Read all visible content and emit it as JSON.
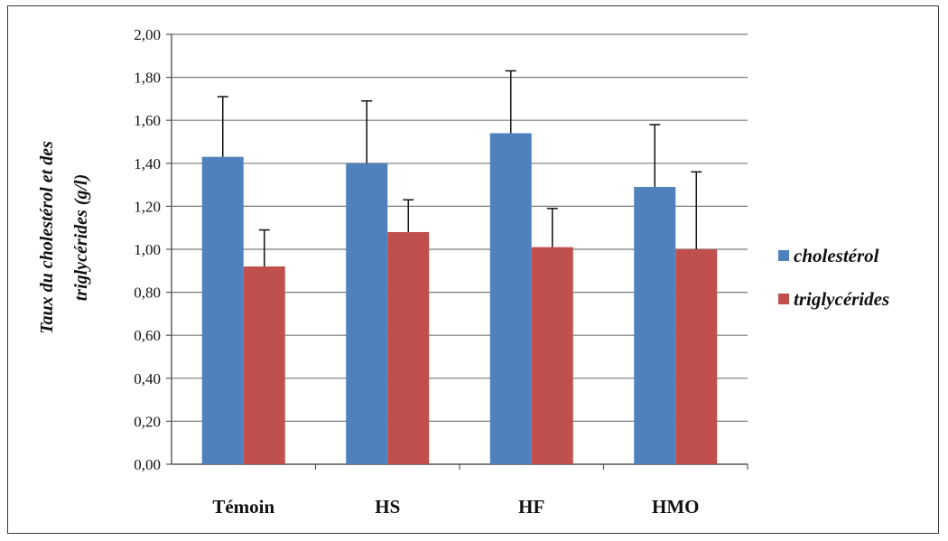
{
  "chart_data": {
    "type": "bar",
    "title": "",
    "categories": [
      "Témoin",
      "HS",
      "HF",
      "HMO"
    ],
    "series": [
      {
        "name": "cholestérol",
        "color": "#4f81bd",
        "values": [
          1.43,
          1.4,
          1.54,
          1.29
        ],
        "errors": [
          0.28,
          0.29,
          0.29,
          0.29
        ]
      },
      {
        "name": "triglycérides",
        "color": "#c0504d",
        "values": [
          0.92,
          1.08,
          1.01,
          1.0
        ],
        "errors": [
          0.17,
          0.15,
          0.18,
          0.36
        ]
      }
    ],
    "ylabel_lines": [
      "Taux du cholestérol et des",
      "triglycérides (g/l)"
    ],
    "xlabel": "",
    "ylim": [
      0,
      2.0
    ],
    "yticks": [
      "0,00",
      "0,20",
      "0,40",
      "0,60",
      "0,80",
      "1,00",
      "1,20",
      "1,40",
      "1,60",
      "1,80",
      "2,00"
    ],
    "grid": true,
    "legend_position": "right",
    "error_bars": true
  }
}
